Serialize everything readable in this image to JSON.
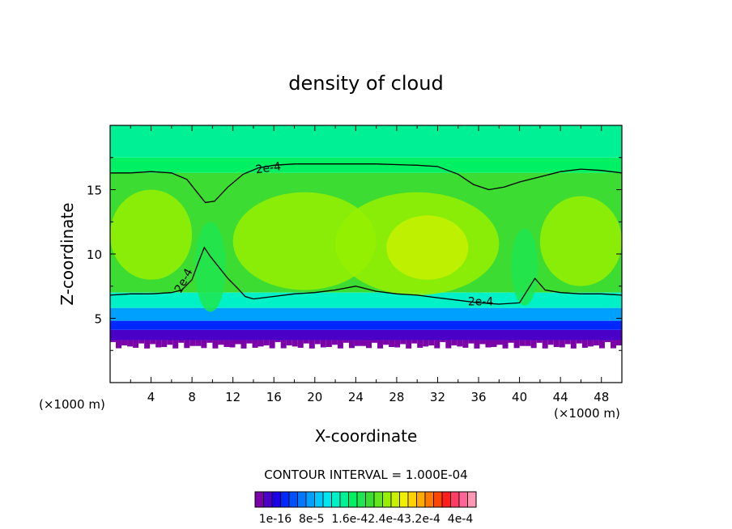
{
  "chart_data": {
    "type": "heatmap",
    "title": "density of cloud",
    "xlabel": "X-coordinate",
    "ylabel": "Z-coordinate",
    "x_unit_left": "(×1000 m)",
    "x_unit_right": "(×1000 m)",
    "xlim": [
      0,
      50
    ],
    "ylim": [
      0,
      20
    ],
    "x_ticks": [
      4,
      8,
      12,
      16,
      20,
      24,
      28,
      32,
      36,
      40,
      44,
      48
    ],
    "y_ticks": [
      5,
      10,
      15
    ],
    "contour_interval_text": "CONTOUR INTERVAL = 1.000E-04",
    "contour_label": "2e-4",
    "colorbar": {
      "labels": [
        "1e-16",
        "8e-5",
        "1.6e-4",
        "2.4e-4",
        "3.2e-4",
        "4e-4"
      ],
      "label_text": "1e-16  8e-5  1.6e-42.4e-43.2e-4  4e-4",
      "colors": [
        "#7a00a8",
        "#4b00c8",
        "#1e00e6",
        "#0028ff",
        "#0050ff",
        "#0078ff",
        "#00a0ff",
        "#00c8ff",
        "#00e6f0",
        "#00f0c8",
        "#00f096",
        "#00f064",
        "#1ee650",
        "#3cdc32",
        "#64e61e",
        "#96f000",
        "#c8f000",
        "#f0f000",
        "#ffd200",
        "#ffaa00",
        "#ff7800",
        "#ff4600",
        "#ff1e1e",
        "#ff3c64",
        "#ff6496",
        "#ff96b4"
      ]
    },
    "cloud_top_contour": [
      [
        0,
        16.3
      ],
      [
        2,
        16.3
      ],
      [
        4,
        16.4
      ],
      [
        6,
        16.3
      ],
      [
        7.5,
        15.8
      ],
      [
        8.5,
        14.8
      ],
      [
        9.3,
        14
      ],
      [
        10.2,
        14.1
      ],
      [
        11.5,
        15.2
      ],
      [
        13,
        16.2
      ],
      [
        14.5,
        16.7
      ],
      [
        16,
        16.9
      ],
      [
        18,
        17
      ],
      [
        22,
        17
      ],
      [
        26,
        17
      ],
      [
        30,
        16.9
      ],
      [
        32,
        16.8
      ],
      [
        34,
        16.2
      ],
      [
        35.5,
        15.4
      ],
      [
        37,
        15
      ],
      [
        38.5,
        15.2
      ],
      [
        40,
        15.6
      ],
      [
        42,
        16
      ],
      [
        44,
        16.4
      ],
      [
        46,
        16.6
      ],
      [
        48,
        16.5
      ],
      [
        50,
        16.3
      ]
    ],
    "cloud_base_contour": [
      [
        0,
        6.8
      ],
      [
        2,
        6.9
      ],
      [
        4,
        6.9
      ],
      [
        6,
        7
      ],
      [
        7,
        7.2
      ],
      [
        8,
        8
      ],
      [
        8.6,
        9.3
      ],
      [
        9.2,
        10.5
      ],
      [
        9.8,
        9.8
      ],
      [
        10.6,
        9
      ],
      [
        11.5,
        8.1
      ],
      [
        12.5,
        7.3
      ],
      [
        13.2,
        6.7
      ],
      [
        14,
        6.5
      ],
      [
        16,
        6.7
      ],
      [
        18,
        6.9
      ],
      [
        20,
        7
      ],
      [
        22,
        7.2
      ],
      [
        24,
        7.5
      ],
      [
        26,
        7.1
      ],
      [
        28,
        6.9
      ],
      [
        30,
        6.8
      ],
      [
        32,
        6.6
      ],
      [
        34,
        6.4
      ],
      [
        36,
        6.2
      ],
      [
        38,
        6.1
      ],
      [
        40,
        6.2
      ],
      [
        41.5,
        8.1
      ],
      [
        42.5,
        7.2
      ],
      [
        44,
        7
      ],
      [
        46,
        6.9
      ],
      [
        48,
        6.9
      ],
      [
        50,
        6.8
      ]
    ]
  }
}
